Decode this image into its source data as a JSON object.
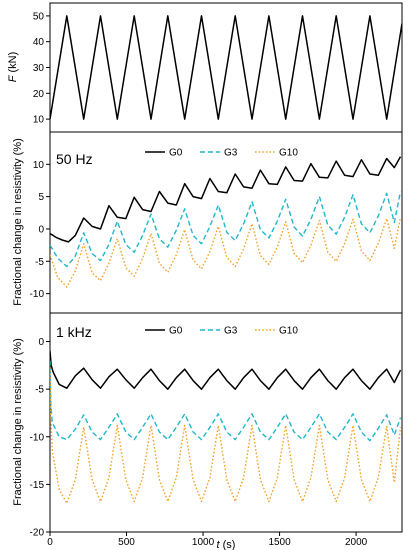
{
  "chart_data": [
    {
      "type": "line",
      "panel": "force",
      "ylabel": "F (kN)",
      "ylabel_var": "F",
      "ylabel_unit": " (kN)",
      "xlim": [
        0,
        2300
      ],
      "ylim": [
        5,
        55
      ],
      "yticks": [
        10,
        20,
        30,
        40,
        50
      ],
      "grid": false,
      "series": [
        {
          "color": "#000000",
          "style": "solid",
          "x": [
            0,
            110,
            220,
            330,
            440,
            550,
            660,
            770,
            880,
            990,
            1100,
            1210,
            1320,
            1430,
            1540,
            1650,
            1760,
            1870,
            1980,
            2090,
            2200,
            2300
          ],
          "y": [
            10,
            50,
            10,
            50,
            10,
            50,
            10,
            50,
            10,
            50,
            10,
            50,
            10,
            50,
            10,
            50,
            10,
            50,
            10,
            50,
            10,
            47
          ]
        }
      ]
    },
    {
      "type": "line",
      "panel": "50hz",
      "annotation": "50 Hz",
      "ylabel": "Fractional change in resistivity (%)",
      "xlim": [
        0,
        2300
      ],
      "ylim": [
        -13,
        15
      ],
      "yticks": [
        -10,
        -5,
        0,
        5,
        10
      ],
      "grid": false,
      "legend_position": "top-center",
      "series": [
        {
          "name": "G0",
          "color": "#000000",
          "style": "solid",
          "x": [
            0,
            40,
            80,
            120,
            165,
            220,
            275,
            330,
            385,
            440,
            495,
            550,
            605,
            660,
            715,
            770,
            825,
            880,
            935,
            990,
            1045,
            1100,
            1155,
            1210,
            1265,
            1320,
            1375,
            1430,
            1485,
            1540,
            1595,
            1650,
            1705,
            1760,
            1815,
            1870,
            1925,
            1980,
            2035,
            2090,
            2145,
            2200,
            2250,
            2290
          ],
          "y": [
            -0.7,
            -1.3,
            -1.7,
            -2.0,
            -1.0,
            1.7,
            0.4,
            0.0,
            3.6,
            1.8,
            1.6,
            4.9,
            3.0,
            2.7,
            5.8,
            4.0,
            3.7,
            7.0,
            5.0,
            4.7,
            7.8,
            5.8,
            5.6,
            8.5,
            6.5,
            6.3,
            9.1,
            7.0,
            6.9,
            9.6,
            7.5,
            7.4,
            10.1,
            8.0,
            7.9,
            10.5,
            8.3,
            8.1,
            10.7,
            8.5,
            8.3,
            10.9,
            9.5,
            11.2
          ]
        },
        {
          "name": "G3",
          "color": "#1fb7c9",
          "style": "dashed",
          "x": [
            0,
            50,
            110,
            165,
            220,
            275,
            330,
            385,
            440,
            495,
            550,
            605,
            660,
            715,
            770,
            825,
            880,
            935,
            990,
            1045,
            1100,
            1155,
            1210,
            1265,
            1320,
            1375,
            1430,
            1485,
            1540,
            1595,
            1650,
            1705,
            1760,
            1815,
            1870,
            1925,
            1980,
            2035,
            2090,
            2145,
            2200,
            2250,
            2290
          ],
          "y": [
            -2.5,
            -4.5,
            -5.8,
            -4.2,
            -0.6,
            -3.8,
            -4.9,
            -2.4,
            1.2,
            -2.4,
            -3.6,
            -1.0,
            2.3,
            -1.5,
            -2.8,
            -0.2,
            3.1,
            -1.0,
            -2.3,
            0.4,
            3.7,
            -0.5,
            -1.8,
            0.8,
            4.2,
            -0.1,
            -1.4,
            1.2,
            4.6,
            0.3,
            -1.1,
            1.5,
            5.0,
            0.6,
            -0.8,
            1.8,
            5.3,
            0.8,
            -0.6,
            2.0,
            5.5,
            1.0,
            5.8
          ]
        },
        {
          "name": "G10",
          "color": "#f5a22a",
          "style": "dotted",
          "x": [
            0,
            50,
            110,
            165,
            220,
            275,
            330,
            385,
            440,
            495,
            550,
            605,
            660,
            715,
            770,
            825,
            880,
            935,
            990,
            1045,
            1100,
            1155,
            1210,
            1265,
            1320,
            1375,
            1430,
            1485,
            1540,
            1595,
            1650,
            1705,
            1760,
            1815,
            1870,
            1925,
            1980,
            2035,
            2090,
            2145,
            2200,
            2250,
            2290
          ],
          "y": [
            -4.0,
            -7.5,
            -9.0,
            -6.5,
            -2.3,
            -6.8,
            -8.0,
            -5.3,
            -1.5,
            -6.0,
            -7.3,
            -4.6,
            -0.7,
            -5.3,
            -6.7,
            -4.0,
            -0.1,
            -4.8,
            -6.2,
            -3.5,
            0.4,
            -4.4,
            -5.8,
            -3.1,
            0.8,
            -4.1,
            -5.5,
            -2.8,
            1.1,
            -3.8,
            -5.2,
            -2.5,
            1.3,
            -3.6,
            -5.0,
            -2.3,
            1.5,
            -3.4,
            -4.9,
            -2.2,
            1.6,
            -3.0,
            1.8
          ]
        }
      ]
    },
    {
      "type": "line",
      "panel": "1khz",
      "annotation": "1 kHz",
      "xlabel": "t (s)",
      "xlabel_var": "t",
      "xlabel_unit": " (s)",
      "ylabel": "Fractional change in resistivity (%)",
      "xlim": [
        0,
        2300
      ],
      "ylim": [
        -20,
        3
      ],
      "xticks": [
        0,
        500,
        1000,
        1500,
        2000
      ],
      "yticks": [
        -20,
        -15,
        -10,
        -5,
        0
      ],
      "grid": false,
      "legend_position": "top-center",
      "series": [
        {
          "name": "G0",
          "color": "#000000",
          "style": "solid",
          "x": [
            0,
            8,
            20,
            60,
            110,
            165,
            220,
            275,
            330,
            385,
            440,
            495,
            550,
            605,
            660,
            715,
            770,
            825,
            880,
            935,
            990,
            1045,
            1100,
            1155,
            1210,
            1265,
            1320,
            1375,
            1430,
            1485,
            1540,
            1595,
            1650,
            1705,
            1760,
            1815,
            1870,
            1925,
            1980,
            2035,
            2090,
            2145,
            2200,
            2250,
            2290
          ],
          "y": [
            -1.0,
            -2.5,
            -3.2,
            -4.5,
            -4.9,
            -3.6,
            -2.8,
            -4.0,
            -4.9,
            -3.7,
            -2.9,
            -4.0,
            -4.9,
            -3.8,
            -2.9,
            -4.1,
            -5.0,
            -3.8,
            -2.9,
            -4.1,
            -5.0,
            -3.8,
            -2.9,
            -4.1,
            -5.0,
            -3.8,
            -2.9,
            -4.1,
            -5.0,
            -3.8,
            -2.9,
            -4.1,
            -5.0,
            -3.8,
            -2.9,
            -4.1,
            -5.0,
            -3.8,
            -2.9,
            -4.1,
            -5.0,
            -3.8,
            -2.9,
            -4.3,
            -3.0
          ]
        },
        {
          "name": "G3",
          "color": "#1fb7c9",
          "style": "dashed",
          "x": [
            0,
            5,
            15,
            60,
            110,
            165,
            220,
            275,
            330,
            385,
            440,
            495,
            550,
            605,
            660,
            715,
            770,
            825,
            880,
            935,
            990,
            1045,
            1100,
            1155,
            1210,
            1265,
            1320,
            1375,
            1430,
            1485,
            1540,
            1595,
            1650,
            1705,
            1760,
            1815,
            1870,
            1925,
            1980,
            2035,
            2090,
            2145,
            2200,
            2250,
            2290
          ],
          "y": [
            -2.0,
            -6.5,
            -8.5,
            -10.0,
            -10.3,
            -9.2,
            -7.7,
            -9.5,
            -10.3,
            -9.0,
            -7.6,
            -9.5,
            -10.3,
            -9.0,
            -7.6,
            -9.5,
            -10.3,
            -9.0,
            -7.6,
            -9.5,
            -10.3,
            -9.0,
            -7.6,
            -9.5,
            -10.3,
            -9.0,
            -7.6,
            -9.5,
            -10.3,
            -9.0,
            -7.6,
            -9.5,
            -10.3,
            -9.0,
            -7.6,
            -9.5,
            -10.3,
            -9.0,
            -7.6,
            -9.5,
            -10.4,
            -9.1,
            -7.7,
            -9.8,
            -8.0
          ]
        },
        {
          "name": "G10",
          "color": "#f5a22a",
          "style": "dotted",
          "x": [
            0,
            5,
            15,
            60,
            110,
            165,
            220,
            275,
            330,
            385,
            440,
            495,
            550,
            605,
            660,
            715,
            770,
            825,
            880,
            935,
            990,
            1045,
            1100,
            1155,
            1210,
            1265,
            1320,
            1375,
            1430,
            1485,
            1540,
            1595,
            1650,
            1705,
            1760,
            1815,
            1870,
            1925,
            1980,
            2035,
            2090,
            2145,
            2200,
            2250,
            2290
          ],
          "y": [
            -3.0,
            -8.0,
            -11.5,
            -15.5,
            -17.0,
            -14.5,
            -9.0,
            -14.5,
            -16.8,
            -14.3,
            -8.8,
            -14.5,
            -16.8,
            -14.3,
            -8.8,
            -14.5,
            -16.8,
            -14.3,
            -8.8,
            -14.5,
            -16.8,
            -14.3,
            -8.8,
            -14.5,
            -16.8,
            -14.3,
            -8.8,
            -14.5,
            -16.8,
            -14.3,
            -8.8,
            -14.5,
            -16.8,
            -14.3,
            -8.8,
            -14.5,
            -16.8,
            -14.3,
            -8.8,
            -14.5,
            -16.8,
            -14.3,
            -8.9,
            -14.8,
            -9.0
          ]
        }
      ]
    }
  ]
}
